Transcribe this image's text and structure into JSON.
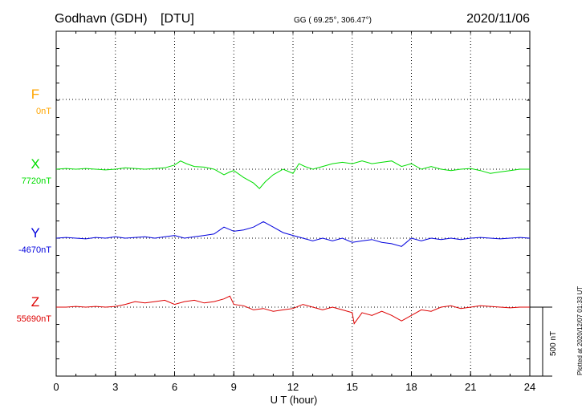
{
  "header": {
    "station": "Godhavn (GDH)",
    "source": "[DTU]",
    "coords": "GG ( 69.25°, 306.47°)",
    "date": "2020/11/06"
  },
  "footer": {
    "scale_label": "500 nT",
    "plotted_note": "Plotted at 2020/12/07 01:33 UT"
  },
  "chart_data": {
    "type": "line",
    "xlabel": "U T (hour)",
    "xlim": [
      0,
      24
    ],
    "xticks": [
      0,
      3,
      6,
      9,
      12,
      15,
      18,
      21,
      24
    ],
    "grid": true,
    "scale_bar_nT": 500,
    "series": [
      {
        "name": "F",
        "baseline_label": "0nT",
        "color": "#ffa500",
        "x": [],
        "values": []
      },
      {
        "name": "X",
        "baseline_label": "7720nT",
        "color": "#00dd00",
        "x": [
          0,
          0.5,
          1,
          1.5,
          2,
          2.5,
          3,
          3.5,
          4,
          4.5,
          5,
          5.5,
          6,
          6.3,
          6.6,
          7,
          7.5,
          8,
          8.5,
          8.8,
          9,
          9.5,
          10,
          10.3,
          10.6,
          11,
          11.5,
          12,
          12.3,
          12.6,
          13,
          13.5,
          14,
          14.5,
          15,
          15.5,
          16,
          16.5,
          17,
          17.5,
          18,
          18.5,
          19,
          19.5,
          20,
          20.5,
          21,
          21.5,
          22,
          22.5,
          23,
          23.5,
          24
        ],
        "values": [
          0,
          5,
          0,
          5,
          0,
          -5,
          0,
          10,
          5,
          0,
          5,
          10,
          30,
          60,
          40,
          20,
          15,
          0,
          -40,
          -20,
          -10,
          -60,
          -100,
          -140,
          -90,
          -40,
          0,
          -30,
          40,
          20,
          0,
          20,
          40,
          50,
          40,
          60,
          40,
          50,
          60,
          20,
          40,
          0,
          20,
          0,
          -10,
          0,
          5,
          -10,
          -30,
          -20,
          -10,
          0,
          0
        ]
      },
      {
        "name": "Y",
        "baseline_label": "-4670nT",
        "color": "#0000dd",
        "x": [
          0,
          0.5,
          1,
          1.5,
          2,
          2.5,
          3,
          3.5,
          4,
          4.5,
          5,
          5.5,
          6,
          6.5,
          7,
          7.5,
          8,
          8.5,
          9,
          9.5,
          10,
          10.5,
          11,
          11.5,
          12,
          12.5,
          13,
          13.5,
          14,
          14.5,
          15,
          15.5,
          16,
          16.5,
          17,
          17.5,
          18,
          18.5,
          19,
          19.5,
          20,
          20.5,
          21,
          21.5,
          22,
          22.5,
          23,
          23.5,
          24
        ],
        "values": [
          0,
          5,
          0,
          -5,
          5,
          0,
          10,
          0,
          5,
          10,
          0,
          10,
          20,
          0,
          10,
          20,
          30,
          80,
          50,
          60,
          80,
          120,
          80,
          40,
          20,
          0,
          -20,
          0,
          -20,
          0,
          -30,
          -20,
          -10,
          -30,
          -40,
          -60,
          0,
          -20,
          0,
          -10,
          0,
          -10,
          0,
          5,
          0,
          -5,
          0,
          5,
          0
        ]
      },
      {
        "name": "Z",
        "baseline_label": "55690nT",
        "color": "#dd0000",
        "x": [
          0,
          0.5,
          1,
          1.5,
          2,
          2.5,
          3,
          3.5,
          4,
          4.5,
          5,
          5.5,
          6,
          6.5,
          7,
          7.5,
          8,
          8.5,
          8.8,
          9,
          9.5,
          10,
          10.5,
          11,
          11.5,
          12,
          12.5,
          13,
          13.5,
          14,
          14.5,
          15,
          15.1,
          15.3,
          15.5,
          16,
          16.5,
          17,
          17.5,
          18,
          18.5,
          19,
          19.5,
          20,
          20.5,
          21,
          21.5,
          22,
          22.5,
          23,
          23.5,
          24
        ],
        "values": [
          0,
          0,
          5,
          0,
          5,
          0,
          5,
          20,
          40,
          30,
          40,
          50,
          20,
          40,
          50,
          30,
          40,
          60,
          80,
          20,
          10,
          -20,
          -10,
          -30,
          -20,
          -10,
          20,
          0,
          -20,
          0,
          -20,
          -40,
          -120,
          -80,
          -40,
          -60,
          -30,
          -60,
          -100,
          -60,
          -20,
          -30,
          0,
          10,
          -10,
          0,
          10,
          5,
          0,
          -5,
          0,
          0
        ]
      }
    ]
  }
}
